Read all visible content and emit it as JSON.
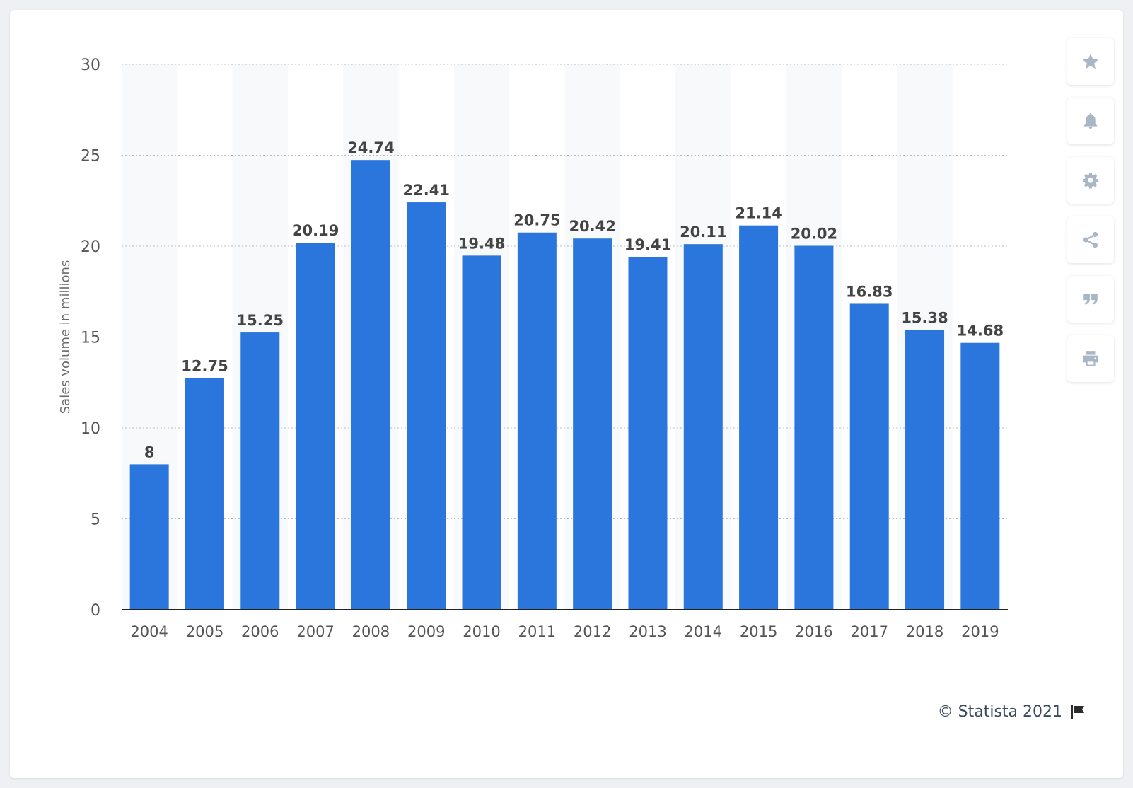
{
  "chart_data": {
    "type": "bar",
    "categories": [
      "2004",
      "2005",
      "2006",
      "2007",
      "2008",
      "2009",
      "2010",
      "2011",
      "2012",
      "2013",
      "2014",
      "2015",
      "2016",
      "2017",
      "2018",
      "2019"
    ],
    "values": [
      8,
      12.75,
      15.25,
      20.19,
      24.74,
      22.41,
      19.48,
      20.75,
      20.42,
      19.41,
      20.11,
      21.14,
      20.02,
      16.83,
      15.38,
      14.68
    ],
    "value_labels": [
      "8",
      "12.75",
      "15.25",
      "20.19",
      "24.74",
      "22.41",
      "19.48",
      "20.75",
      "20.42",
      "19.41",
      "20.11",
      "21.14",
      "20.02",
      "16.83",
      "15.38",
      "14.68"
    ],
    "title": "",
    "xlabel": "",
    "ylabel": "Sales volume in millions",
    "ylim": [
      0,
      30
    ],
    "yticks": [
      0,
      5,
      10,
      15,
      20,
      25,
      30
    ],
    "grid": true,
    "bar_color": "#2a76dd"
  },
  "toolbar": {
    "icons": [
      "star-icon",
      "bell-icon",
      "gear-icon",
      "share-icon",
      "quote-icon",
      "print-icon"
    ]
  },
  "footer": {
    "credit": "© Statista 2021"
  },
  "colors": {
    "icon": "#a9b6c6",
    "text": "#3b4a5e",
    "axis_text": "#555555",
    "value_text": "#444444"
  }
}
